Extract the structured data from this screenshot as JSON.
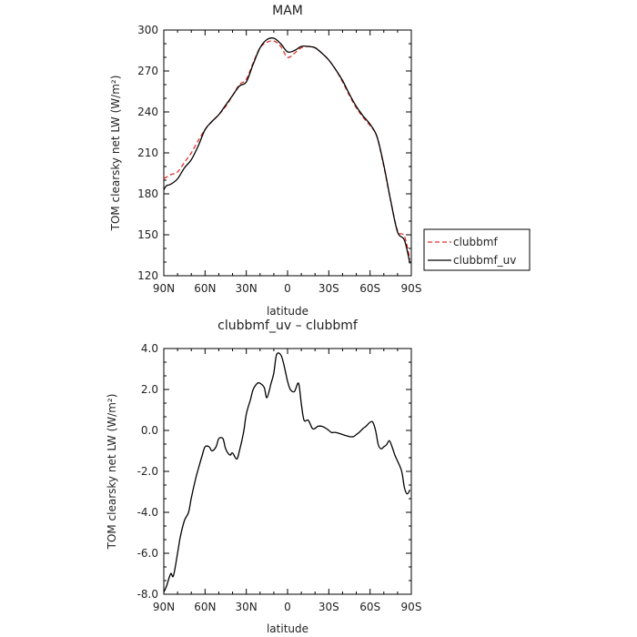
{
  "chart_data": [
    {
      "type": "line",
      "title": "MAM",
      "xlabel": "latitude",
      "ylabel": "TOM clearsky net LW (W/m²)",
      "xlim": [
        90,
        -90
      ],
      "ylim": [
        120,
        300
      ],
      "x_ticks": [
        90,
        60,
        30,
        0,
        -30,
        -60,
        -90
      ],
      "x_tick_labels": [
        "90N",
        "60N",
        "30N",
        "0",
        "30S",
        "60S",
        "90S"
      ],
      "y_ticks": [
        120,
        150,
        180,
        210,
        240,
        270,
        300
      ],
      "y_tick_labels": [
        "120",
        "150",
        "180",
        "210",
        "240",
        "270",
        "300"
      ],
      "grid": false,
      "legend_position": "right",
      "series": [
        {
          "name": "clubbmf",
          "color": "#e0312b",
          "dash": "dashed",
          "x": [
            90,
            85,
            80,
            75,
            70,
            65,
            60,
            55,
            50,
            45,
            40,
            35,
            30,
            25,
            20,
            15,
            10,
            5,
            0,
            -5,
            -10,
            -15,
            -20,
            -25,
            -30,
            -35,
            -40,
            -45,
            -50,
            -55,
            -60,
            -65,
            -70,
            -75,
            -80,
            -85,
            -89
          ],
          "y": [
            191,
            194,
            196,
            203,
            210,
            219,
            227,
            233,
            238,
            244,
            252,
            260,
            264,
            276,
            287,
            291,
            292,
            288,
            280,
            283,
            287,
            288,
            287,
            283,
            278,
            271,
            262,
            252,
            243,
            236,
            230,
            222,
            200,
            175,
            153,
            149,
            132
          ]
        },
        {
          "name": "clubbmf_uv",
          "color": "#000000",
          "dash": "solid",
          "x": [
            90,
            88,
            85,
            80,
            75,
            70,
            65,
            60,
            55,
            50,
            45,
            40,
            35,
            30,
            25,
            20,
            15,
            10,
            5,
            0,
            -5,
            -10,
            -15,
            -20,
            -25,
            -30,
            -35,
            -40,
            -45,
            -50,
            -55,
            -60,
            -65,
            -70,
            -75,
            -80,
            -85,
            -89
          ],
          "y": [
            183,
            186,
            187,
            191,
            199,
            205,
            215,
            227,
            233,
            238,
            245,
            252,
            259,
            262,
            275,
            287,
            293,
            294,
            290,
            284,
            285,
            288,
            288,
            287,
            283,
            278,
            271,
            263,
            253,
            244,
            237,
            231,
            222,
            201,
            175,
            152,
            146,
            129
          ]
        }
      ]
    },
    {
      "type": "line",
      "title": "clubbmf_uv – clubbmf",
      "xlabel": "latitude",
      "ylabel": "TOM clearsky net LW (W/m²)",
      "xlim": [
        90,
        -90
      ],
      "ylim": [
        -8.0,
        4.0
      ],
      "x_ticks": [
        90,
        60,
        30,
        0,
        -30,
        -60,
        -90
      ],
      "x_tick_labels": [
        "90N",
        "60N",
        "30N",
        "0",
        "30S",
        "60S",
        "90S"
      ],
      "y_ticks": [
        -8.0,
        -6.0,
        -4.0,
        -2.0,
        0.0,
        2.0,
        4.0
      ],
      "y_tick_labels": [
        "-8.0",
        "-6.0",
        "-4.0",
        "-2.0",
        "0.0",
        "2.0",
        "4.0"
      ],
      "grid": false,
      "series": [
        {
          "color": "#000000",
          "dash": "solid",
          "x": [
            90,
            88,
            85,
            83,
            80,
            78,
            75,
            72,
            70,
            67,
            65,
            62,
            60,
            57,
            55,
            52,
            50,
            47,
            45,
            42,
            40,
            37,
            35,
            32,
            30,
            27,
            25,
            22,
            20,
            17,
            15,
            12,
            10,
            8,
            5,
            3,
            1,
            0,
            -2,
            -5,
            -8,
            -10,
            -12,
            -15,
            -18,
            -20,
            -22,
            -25,
            -28,
            -30,
            -32,
            -35,
            -40,
            -45,
            -48,
            -50,
            -52,
            -55,
            -57,
            -60,
            -62,
            -64,
            -66,
            -68,
            -70,
            -72,
            -74,
            -76,
            -78,
            -80,
            -83,
            -85,
            -87,
            -89
          ],
          "y": [
            -7.9,
            -7.6,
            -7.0,
            -7.1,
            -6.0,
            -5.2,
            -4.4,
            -4.0,
            -3.3,
            -2.4,
            -1.9,
            -1.2,
            -0.8,
            -0.8,
            -1.0,
            -0.8,
            -0.4,
            -0.4,
            -0.9,
            -1.2,
            -1.1,
            -1.4,
            -1.0,
            -0.1,
            0.8,
            1.5,
            2.0,
            2.3,
            2.3,
            2.1,
            1.6,
            2.3,
            2.8,
            3.7,
            3.7,
            3.3,
            2.7,
            2.4,
            2.0,
            1.9,
            2.3,
            1.3,
            0.5,
            0.5,
            0.1,
            0.1,
            0.2,
            0.2,
            0.1,
            0.0,
            -0.1,
            -0.1,
            -0.2,
            -0.3,
            -0.3,
            -0.2,
            -0.1,
            0.1,
            0.2,
            0.4,
            0.4,
            0.0,
            -0.7,
            -0.9,
            -0.8,
            -0.7,
            -0.5,
            -0.8,
            -1.2,
            -1.5,
            -2.0,
            -2.8,
            -3.1,
            -2.9
          ]
        }
      ]
    }
  ]
}
